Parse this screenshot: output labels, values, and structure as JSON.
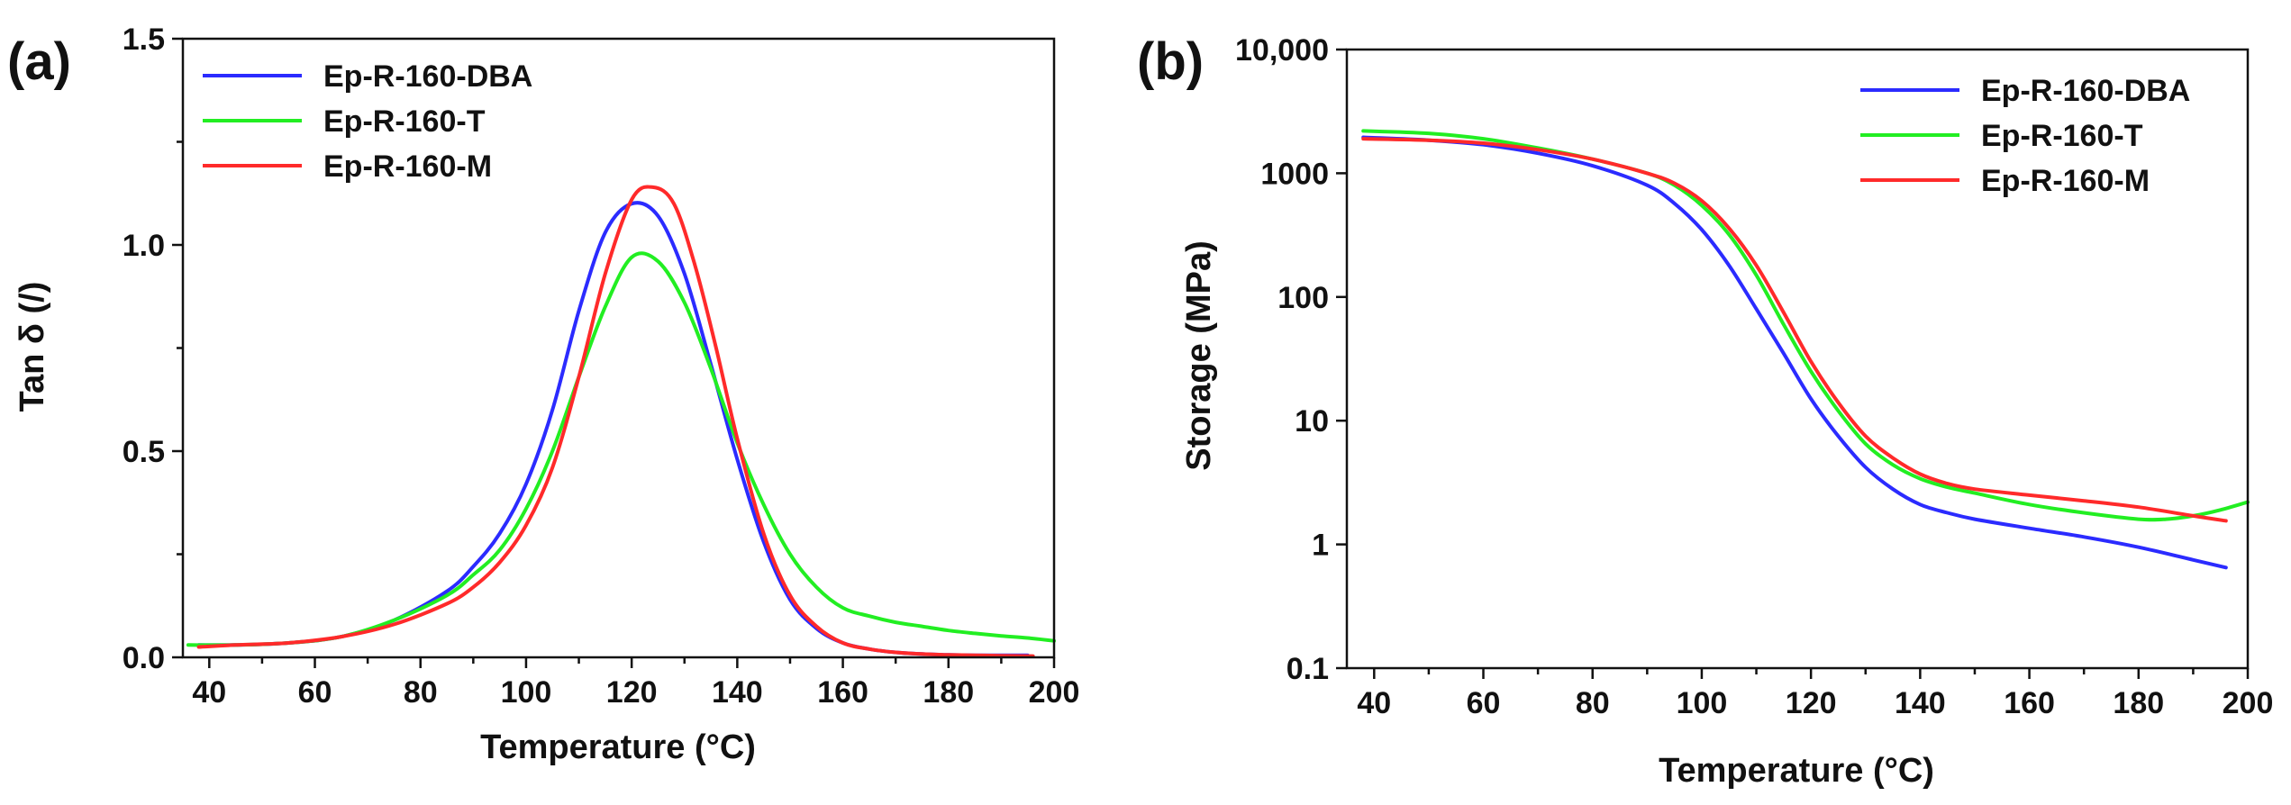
{
  "chart_data": [
    {
      "type": "line",
      "panel_label": "(a)",
      "xlabel": "Temperature (°C)",
      "ylabel": "Tan δ (/)",
      "xlim": [
        35,
        200
      ],
      "ylim": [
        0,
        1.5
      ],
      "x_ticks": [
        40,
        60,
        80,
        100,
        120,
        140,
        160,
        180,
        200
      ],
      "y_ticks": [
        0.0,
        0.5,
        1.0,
        1.5
      ],
      "y_tick_labels": [
        "0.0",
        "0.5",
        "1.0",
        "1.5"
      ],
      "y_scale": "linear",
      "legend_position": "top-left",
      "series": [
        {
          "name": "Ep-R-160-DBA",
          "color": "#2b2bff",
          "x": [
            38,
            45,
            55,
            65,
            75,
            85,
            90,
            95,
            100,
            105,
            110,
            115,
            120,
            125,
            130,
            135,
            140,
            145,
            150,
            155,
            160,
            165,
            170,
            175,
            180,
            185,
            190,
            195
          ],
          "y": [
            0.03,
            0.03,
            0.035,
            0.05,
            0.09,
            0.16,
            0.22,
            0.3,
            0.42,
            0.6,
            0.84,
            1.03,
            1.1,
            1.07,
            0.93,
            0.71,
            0.48,
            0.28,
            0.14,
            0.07,
            0.035,
            0.02,
            0.012,
            0.008,
            0.006,
            0.005,
            0.005,
            0.005
          ]
        },
        {
          "name": "Ep-R-160-T",
          "color": "#22ee22",
          "x": [
            36,
            45,
            55,
            65,
            75,
            85,
            90,
            95,
            100,
            105,
            110,
            115,
            120,
            125,
            130,
            135,
            140,
            145,
            150,
            155,
            160,
            165,
            170,
            175,
            180,
            185,
            190,
            195,
            200
          ],
          "y": [
            0.03,
            0.03,
            0.035,
            0.05,
            0.09,
            0.15,
            0.2,
            0.26,
            0.36,
            0.5,
            0.68,
            0.85,
            0.97,
            0.96,
            0.86,
            0.7,
            0.52,
            0.37,
            0.25,
            0.17,
            0.12,
            0.1,
            0.085,
            0.075,
            0.065,
            0.058,
            0.052,
            0.047,
            0.04
          ]
        },
        {
          "name": "Ep-R-160-M",
          "color": "#ff2a2a",
          "x": [
            38,
            45,
            55,
            65,
            75,
            85,
            90,
            95,
            100,
            105,
            110,
            115,
            120,
            124,
            128,
            132,
            136,
            140,
            145,
            150,
            155,
            160,
            165,
            170,
            175,
            180,
            185,
            190,
            196
          ],
          "y": [
            0.025,
            0.03,
            0.035,
            0.05,
            0.08,
            0.13,
            0.17,
            0.23,
            0.32,
            0.46,
            0.68,
            0.93,
            1.11,
            1.14,
            1.1,
            0.95,
            0.75,
            0.53,
            0.3,
            0.15,
            0.075,
            0.035,
            0.02,
            0.012,
            0.008,
            0.006,
            0.005,
            0.004,
            0.003
          ]
        }
      ]
    },
    {
      "type": "line",
      "panel_label": "(b)",
      "xlabel": "Temperature (°C)",
      "ylabel": "Storage (MPa)",
      "xlim": [
        35,
        200
      ],
      "ylim": [
        0.1,
        10000
      ],
      "x_ticks": [
        40,
        60,
        80,
        100,
        120,
        140,
        160,
        180,
        200
      ],
      "y_ticks": [
        0.1,
        1,
        10,
        100,
        1000,
        10000
      ],
      "y_tick_labels": [
        "0.1",
        "1",
        "10",
        "100",
        "1000",
        "10,000"
      ],
      "y_scale": "log",
      "legend_position": "top-right",
      "series": [
        {
          "name": "Ep-R-160-DBA",
          "color": "#2b2bff",
          "x": [
            38,
            50,
            60,
            70,
            80,
            90,
            95,
            100,
            105,
            110,
            115,
            120,
            125,
            130,
            135,
            140,
            145,
            150,
            160,
            170,
            180,
            190,
            196
          ],
          "y": [
            1950,
            1850,
            1700,
            1450,
            1150,
            800,
            570,
            350,
            180,
            80,
            35,
            15,
            7.5,
            4.2,
            2.8,
            2.1,
            1.8,
            1.6,
            1.35,
            1.15,
            0.95,
            0.75,
            0.65
          ]
        },
        {
          "name": "Ep-R-160-T",
          "color": "#22ee22",
          "x": [
            38,
            50,
            60,
            70,
            80,
            90,
            95,
            100,
            105,
            110,
            115,
            120,
            125,
            130,
            135,
            140,
            145,
            150,
            160,
            170,
            180,
            185,
            190,
            195,
            200
          ],
          "y": [
            2200,
            2100,
            1900,
            1600,
            1300,
            1000,
            800,
            550,
            320,
            150,
            60,
            25,
            12,
            6.5,
            4.4,
            3.4,
            2.9,
            2.6,
            2.1,
            1.8,
            1.6,
            1.6,
            1.7,
            1.9,
            2.2
          ]
        },
        {
          "name": "Ep-R-160-M",
          "color": "#ff2a2a",
          "x": [
            38,
            50,
            60,
            70,
            80,
            90,
            95,
            100,
            105,
            110,
            115,
            120,
            125,
            130,
            135,
            140,
            145,
            150,
            160,
            170,
            180,
            190,
            196
          ],
          "y": [
            1900,
            1850,
            1750,
            1550,
            1300,
            1000,
            830,
            600,
            360,
            180,
            75,
            30,
            14,
            7.5,
            5.0,
            3.7,
            3.1,
            2.8,
            2.5,
            2.25,
            2.0,
            1.7,
            1.55
          ]
        }
      ]
    }
  ]
}
